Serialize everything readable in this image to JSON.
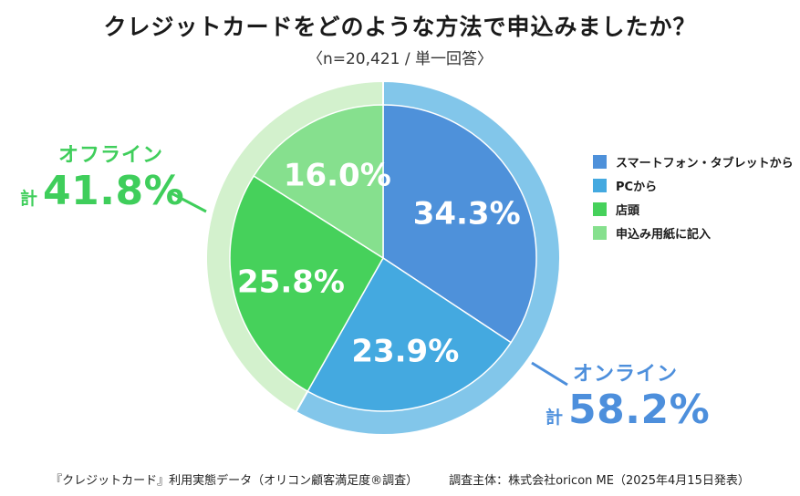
{
  "title": "クレジットカードをどのような方法で申込みましたか？",
  "subtitle": "〈n=20,421 / 単一回答〉",
  "chart_data": {
    "type": "pie",
    "title": "クレジットカードをどのような方法で申込みましたか？",
    "subtitle": "〈n=20,421 / 単一回答〉",
    "unit": "%",
    "slices": [
      {
        "name": "スマートフォン・タブレットから",
        "value": 34.3,
        "label": "34.3%",
        "color": "#4e91da"
      },
      {
        "name": "PCから",
        "value": 23.9,
        "label": "23.9%",
        "color": "#44a9e0"
      },
      {
        "name": "店頭",
        "value": 25.8,
        "label": "25.8%",
        "color": "#46d15b"
      },
      {
        "name": "申込み用紙に記入",
        "value": 16.0,
        "label": "16.0%",
        "color": "#86e08e"
      }
    ],
    "groups": [
      {
        "name": "オンライン",
        "total": 58.2,
        "total_label": "58.2%",
        "prefix": "計",
        "ring_color": "#82c6ea",
        "color": "#4d8fdc"
      },
      {
        "name": "オフライン",
        "total": 41.8,
        "total_label": "41.8%",
        "prefix": "計",
        "ring_color": "#d3f1cd",
        "color": "#3fce5b"
      }
    ],
    "legend_position": "right"
  },
  "footer": {
    "source": "『クレジットカード』利用実態データ（オリコン顧客満足度®調査）",
    "survey": "調査主体：株式会社oricon ME（2025年4月15日発表）"
  }
}
